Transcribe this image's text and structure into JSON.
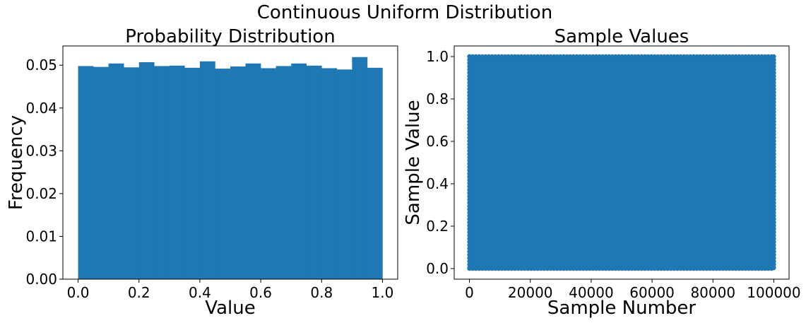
{
  "figure": {
    "suptitle": "Continuous Uniform Distribution"
  },
  "chart_data": [
    {
      "type": "bar",
      "title": "Probability Distribution",
      "xlabel": "Value",
      "ylabel": "Frequency",
      "xlim": [
        -0.05,
        1.05
      ],
      "ylim": [
        0,
        0.0545
      ],
      "xticks": [
        "0.0",
        "0.2",
        "0.4",
        "0.6",
        "0.8",
        "1.0"
      ],
      "yticks": [
        "0.00",
        "0.01",
        "0.02",
        "0.03",
        "0.04",
        "0.05"
      ],
      "bin_edges": [
        0.0,
        0.05,
        0.1,
        0.15,
        0.2,
        0.25,
        0.3,
        0.35,
        0.4,
        0.45,
        0.5,
        0.55,
        0.6,
        0.65,
        0.7,
        0.75,
        0.8,
        0.85,
        0.9,
        0.95,
        1.0
      ],
      "values": [
        0.0498,
        0.0496,
        0.0504,
        0.0495,
        0.0507,
        0.0498,
        0.0499,
        0.0494,
        0.0509,
        0.0492,
        0.0497,
        0.0504,
        0.0493,
        0.0498,
        0.0504,
        0.0499,
        0.0493,
        0.049,
        0.0519,
        0.0494
      ],
      "color": "#1f77b4",
      "grid": false
    },
    {
      "type": "scatter",
      "title": "Sample Values",
      "xlabel": "Sample Number",
      "ylabel": "Sample Value",
      "xlim": [
        -5000,
        105000
      ],
      "ylim": [
        -0.05,
        1.05
      ],
      "xticks": [
        "0",
        "20000",
        "40000",
        "60000",
        "80000",
        "100000"
      ],
      "yticks": [
        "0.0",
        "0.2",
        "0.4",
        "0.6",
        "0.8",
        "1.0"
      ],
      "x_range": [
        0,
        100000
      ],
      "y_range": [
        0.0,
        1.0
      ],
      "num_points": 100000,
      "color": "#1f77b4",
      "grid": false
    }
  ]
}
